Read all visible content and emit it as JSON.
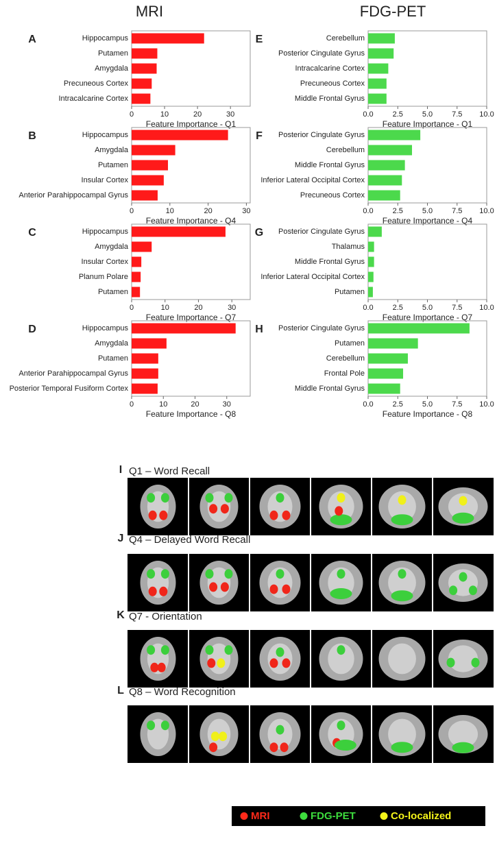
{
  "headers": [
    "MRI",
    "FDG-PET"
  ],
  "chart_data": [
    {
      "type": "bar",
      "orientation": "horizontal",
      "panel": "A",
      "categories": [
        "Hippocampus",
        "Putamen",
        "Amygdala",
        "Precuneous Cortex",
        "Intracalcarine Cortex"
      ],
      "values": [
        22,
        7.8,
        7.6,
        6.1,
        5.7
      ],
      "color": "#ff1a1a",
      "xlabel": "Feature Importance - Q1",
      "xlim": [
        0,
        36
      ],
      "xticks": [
        0,
        10,
        20,
        30
      ]
    },
    {
      "type": "bar",
      "orientation": "horizontal",
      "panel": "B",
      "categories": [
        "Hippocampus",
        "Amygdala",
        "Putamen",
        "Insular Cortex",
        "Anterior Parahippocampal Gyrus"
      ],
      "values": [
        25.2,
        11.4,
        9.5,
        8.4,
        6.8
      ],
      "color": "#ff1a1a",
      "xlabel": "Feature Importance - Q4",
      "xlim": [
        0,
        31
      ],
      "xticks": [
        0,
        10,
        20,
        30
      ]
    },
    {
      "type": "bar",
      "orientation": "horizontal",
      "panel": "C",
      "categories": [
        "Hippocampus",
        "Amygdala",
        "Insular Cortex",
        "Planum Polare",
        "Putamen"
      ],
      "values": [
        28.1,
        6,
        2.9,
        2.7,
        2.5
      ],
      "color": "#ff1a1a",
      "xlabel": "Feature Importance - Q7",
      "xlim": [
        0,
        35.5
      ],
      "xticks": [
        0,
        10,
        20,
        30
      ]
    },
    {
      "type": "bar",
      "orientation": "horizontal",
      "panel": "D",
      "categories": [
        "Hippocampus",
        "Amygdala",
        "Putamen",
        "Anterior Parahippocampal Gyrus",
        "Posterior Temporal Fusiform Cortex"
      ],
      "values": [
        32.8,
        11,
        8.4,
        8.4,
        8.2
      ],
      "color": "#ff1a1a",
      "xlabel": "Feature Importance - Q8",
      "xlim": [
        0,
        37.4
      ],
      "xticks": [
        0,
        10,
        20,
        30
      ]
    },
    {
      "type": "bar",
      "orientation": "horizontal",
      "panel": "E",
      "categories": [
        "Cerebellum",
        "Posterior Cingulate Gyrus",
        "Intracalcarine Cortex",
        "Precuneous Cortex",
        "Middle Frontal Gyrus"
      ],
      "values": [
        2.25,
        2.15,
        1.7,
        1.55,
        1.55
      ],
      "color": "#4cd94c",
      "xlabel": "Feature Importance - Q1",
      "xlim": [
        0,
        10
      ],
      "xticks": [
        {
          "value": 0,
          "label": "0.0"
        },
        2.5,
        {
          "value": 5,
          "label": "5.0"
        },
        7.5,
        {
          "value": 10,
          "label": "10.0"
        }
      ]
    },
    {
      "type": "bar",
      "orientation": "horizontal",
      "panel": "F",
      "categories": [
        "Posterior Cingulate Gyrus",
        "Cerebellum",
        "Middle Frontal Gyrus",
        "Inferior Lateral Occipital Cortex",
        "Precuneous Cortex"
      ],
      "values": [
        4.4,
        3.7,
        3.1,
        2.85,
        2.7
      ],
      "color": "#4cd94c",
      "xlabel": "Feature Importance - Q4",
      "xlim": [
        0,
        10
      ],
      "xticks": [
        {
          "value": 0,
          "label": "0.0"
        },
        2.5,
        {
          "value": 5,
          "label": "5.0"
        },
        7.5,
        {
          "value": 10,
          "label": "10.0"
        }
      ]
    },
    {
      "type": "bar",
      "orientation": "horizontal",
      "panel": "G",
      "categories": [
        "Posterior Cingulate Gyrus",
        "Thalamus",
        "Middle Frontal Gyrus",
        "Inferior Lateral Occipital Cortex",
        "Putamen"
      ],
      "values": [
        1.15,
        0.5,
        0.5,
        0.45,
        0.4
      ],
      "color": "#4cd94c",
      "xlabel": "Feature Importance - Q7",
      "xlim": [
        0,
        10
      ],
      "xticks": [
        {
          "value": 0,
          "label": "0.0"
        },
        2.5,
        {
          "value": 5,
          "label": "5.0"
        },
        7.5,
        {
          "value": 10,
          "label": "10.0"
        }
      ]
    },
    {
      "type": "bar",
      "orientation": "horizontal",
      "panel": "H",
      "categories": [
        "Posterior Cingulate Gyrus",
        "Putamen",
        "Cerebellum",
        "Frontal Pole",
        "Middle Frontal Gyrus"
      ],
      "values": [
        8.55,
        4.2,
        3.35,
        2.95,
        2.7
      ],
      "color": "#4cd94c",
      "xlabel": "Feature Importance - Q8",
      "xlim": [
        0,
        10
      ],
      "xticks": [
        {
          "value": 0,
          "label": "0.0"
        },
        2.5,
        {
          "value": 5,
          "label": "5.0"
        },
        7.5,
        {
          "value": 10,
          "label": "10.0"
        }
      ]
    }
  ],
  "brain_maps": [
    {
      "panel": "I",
      "title": "Q1 – Word Recall"
    },
    {
      "panel": "J",
      "title": "Q4 – Delayed Word Recall"
    },
    {
      "panel": "K",
      "title": "Q7 - Orientation"
    },
    {
      "panel": "L",
      "title": "Q8 – Word Recognition"
    }
  ],
  "legend": [
    {
      "label": "MRI",
      "color": "#ff2a1a"
    },
    {
      "label": "FDG-PET",
      "color": "#3ddc3d"
    },
    {
      "label": "Co-localized",
      "color": "#f5f51a"
    }
  ]
}
